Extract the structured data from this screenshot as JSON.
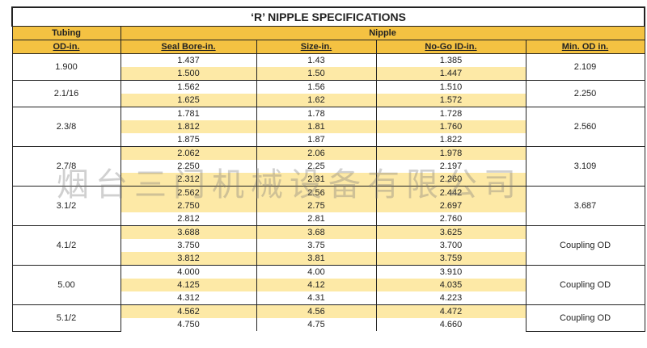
{
  "table": {
    "title": "‘R’ NIPPLE SPECIFICATIONS",
    "header": {
      "tubing": "Tubing",
      "nipple": "Nipple"
    },
    "columns": [
      "OD-in.",
      "Seal Bore-in.",
      "Size-in.",
      "No-Go ID-in.",
      "Min. OD in."
    ],
    "groups": [
      {
        "od": "1.900",
        "min_od": "2.109",
        "rows": [
          [
            "1.437",
            "1.43",
            "1.385"
          ],
          [
            "1.500",
            "1.50",
            "1.447"
          ]
        ]
      },
      {
        "od": "2.1/16",
        "min_od": "2.250",
        "rows": [
          [
            "1.562",
            "1.56",
            "1.510"
          ],
          [
            "1.625",
            "1.62",
            "1.572"
          ]
        ]
      },
      {
        "od": "2.3/8",
        "min_od": "2.560",
        "rows": [
          [
            "1.781",
            "1.78",
            "1.728"
          ],
          [
            "1.812",
            "1.81",
            "1.760"
          ],
          [
            "1.875",
            "1.87",
            "1.822"
          ]
        ]
      },
      {
        "od": "2.7/8",
        "min_od": "3.109",
        "rows": [
          [
            "2.062",
            "2.06",
            "1.978"
          ],
          [
            "2.250",
            "2.25",
            "2.197"
          ],
          [
            "2.312",
            "2.31",
            "2.260"
          ]
        ]
      },
      {
        "od": "3.1/2",
        "min_od": "3.687",
        "rows": [
          [
            "2.562",
            "2.56",
            "2.442"
          ],
          [
            "2.750",
            "2.75",
            "2.697"
          ],
          [
            "2.812",
            "2.81",
            "2.760"
          ]
        ]
      },
      {
        "od": "4.1/2",
        "min_od": "Coupling OD",
        "rows": [
          [
            "3.688",
            "3.68",
            "3.625"
          ],
          [
            "3.750",
            "3.75",
            "3.700"
          ],
          [
            "3.812",
            "3.81",
            "3.759"
          ]
        ]
      },
      {
        "od": "5.00",
        "min_od": "Coupling OD",
        "rows": [
          [
            "4.000",
            "4.00",
            "3.910"
          ],
          [
            "4.125",
            "4.12",
            "4.035"
          ],
          [
            "4.312",
            "4.31",
            "4.223"
          ]
        ]
      },
      {
        "od": "5.1/2",
        "min_od": "Coupling OD",
        "rows": [
          [
            "4.562",
            "4.56",
            "4.472"
          ],
          [
            "4.750",
            "4.75",
            "4.660"
          ]
        ]
      }
    ]
  },
  "watermark": "烟台三门机械设备有限公司"
}
